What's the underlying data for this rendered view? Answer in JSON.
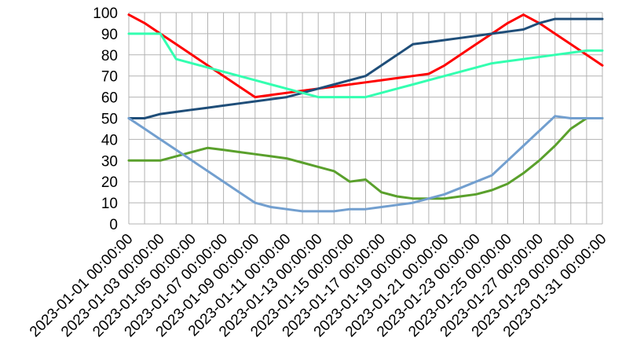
{
  "chart_data": {
    "type": "line",
    "title": "",
    "xlabel": "",
    "ylabel": "",
    "ylim": [
      0,
      100
    ],
    "y_ticks": [
      "0",
      "10",
      "20",
      "30",
      "40",
      "50",
      "60",
      "70",
      "80",
      "90",
      "100"
    ],
    "x_ticks": [
      "2023-01-01 00:00:00",
      "2023-01-03 00:00:00",
      "2023-01-05 00:00:00",
      "2023-01-07 00:00:00",
      "2023-01-09 00:00:00",
      "2023-01-11 00:00:00",
      "2023-01-13 00:00:00",
      "2023-01-15 00:00:00",
      "2023-01-17 00:00:00",
      "2023-01-19 00:00:00",
      "2023-01-21 00:00:00",
      "2023-01-23 00:00:00",
      "2023-01-25 00:00:00",
      "2023-01-27 00:00:00",
      "2023-01-29 00:00:00",
      "2023-01-31 00:00:00"
    ],
    "x": [
      "2023-01-01",
      "2023-01-02",
      "2023-01-03",
      "2023-01-04",
      "2023-01-05",
      "2023-01-06",
      "2023-01-07",
      "2023-01-08",
      "2023-01-09",
      "2023-01-10",
      "2023-01-11",
      "2023-01-12",
      "2023-01-13",
      "2023-01-14",
      "2023-01-15",
      "2023-01-16",
      "2023-01-17",
      "2023-01-18",
      "2023-01-19",
      "2023-01-20",
      "2023-01-21",
      "2023-01-22",
      "2023-01-23",
      "2023-01-24",
      "2023-01-25",
      "2023-01-26",
      "2023-01-27",
      "2023-01-28",
      "2023-01-29",
      "2023-01-30",
      "2023-01-31"
    ],
    "grid": true,
    "legend": "none",
    "series": [
      {
        "color": "#ff0000",
        "values": [
          99,
          95,
          90,
          85,
          80,
          75,
          70,
          65,
          60,
          61,
          62,
          63,
          64,
          65,
          66,
          67,
          68,
          69,
          70,
          71,
          75,
          80,
          85,
          90,
          95,
          99,
          95,
          90,
          85,
          80,
          75
        ]
      },
      {
        "color": "#1f4e79",
        "values": [
          50,
          50,
          52,
          53,
          54,
          55,
          56,
          57,
          58,
          59,
          60,
          62,
          64,
          66,
          68,
          70,
          75,
          80,
          85,
          86,
          87,
          88,
          89,
          90,
          91,
          92,
          95,
          97,
          97,
          97,
          97
        ]
      },
      {
        "color": "#33ffb0",
        "values": [
          90,
          90,
          90,
          78,
          76,
          74,
          72,
          70,
          68,
          66,
          64,
          62,
          60,
          60,
          60,
          60,
          62,
          64,
          66,
          68,
          70,
          72,
          74,
          76,
          77,
          78,
          79,
          80,
          81,
          82,
          82
        ]
      },
      {
        "color": "#5aa02c",
        "values": [
          30,
          30,
          30,
          32,
          34,
          36,
          35,
          34,
          33,
          32,
          31,
          29,
          27,
          25,
          20,
          21,
          15,
          13,
          12,
          12,
          12,
          13,
          14,
          16,
          19,
          24,
          30,
          37,
          45,
          50,
          50
        ]
      },
      {
        "color": "#729fcf",
        "values": [
          50,
          45,
          40,
          35,
          30,
          25,
          20,
          15,
          10,
          8,
          7,
          6,
          6,
          6,
          7,
          7,
          8,
          9,
          10,
          12,
          14,
          17,
          20,
          23,
          30,
          37,
          44,
          51,
          50,
          50,
          50
        ]
      }
    ]
  }
}
